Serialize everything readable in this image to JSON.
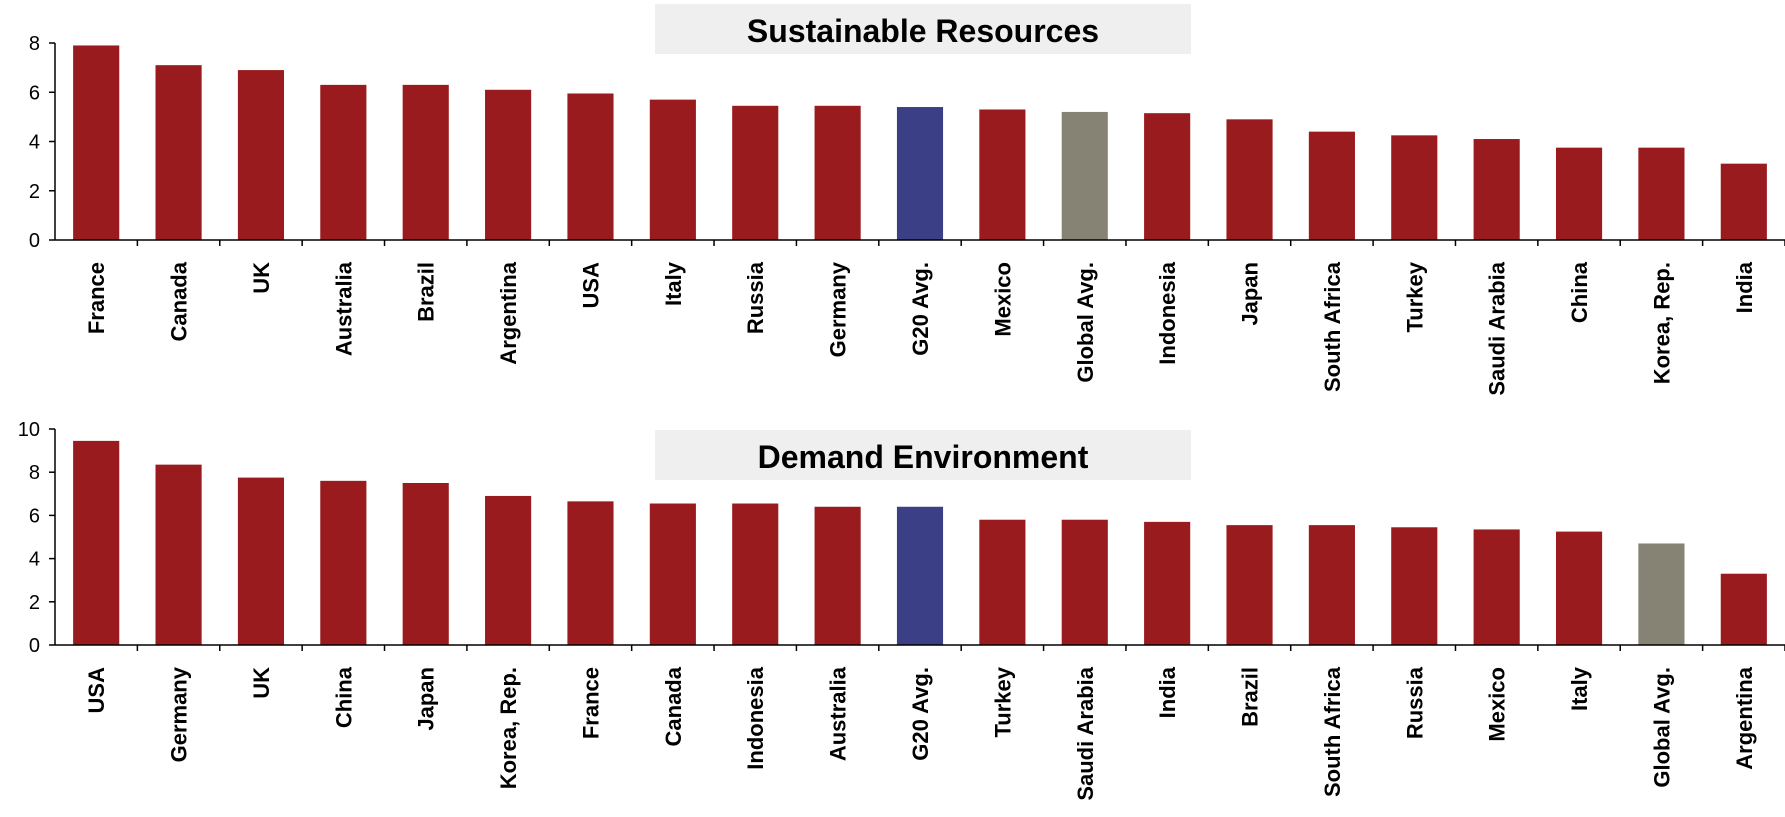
{
  "colors": {
    "default": "#9a1b1e",
    "g20": "#3a3f86",
    "global": "#878374",
    "title_box": "#efefef"
  },
  "chart_data": [
    {
      "type": "bar",
      "title": "Sustainable Resources",
      "ylim": [
        0,
        8
      ],
      "yticks": [
        "0",
        "2",
        "4",
        "6",
        "8"
      ],
      "grid": false,
      "categories": [
        "France",
        "Canada",
        "UK",
        "Australia",
        "Brazil",
        "Argentina",
        "USA",
        "Italy",
        "Russia",
        "Germany",
        "G20 Avg.",
        "Mexico",
        "Global Avg.",
        "Indonesia",
        "Japan",
        "South Africa",
        "Turkey",
        "Saudi Arabia",
        "China",
        "Korea, Rep.",
        "India"
      ],
      "values": [
        7.9,
        7.1,
        6.9,
        6.3,
        6.3,
        6.1,
        5.95,
        5.7,
        5.45,
        5.45,
        5.4,
        5.3,
        5.2,
        5.15,
        4.9,
        4.4,
        4.25,
        4.1,
        3.75,
        3.75,
        3.1
      ]
    },
    {
      "type": "bar",
      "title": "Demand Environment",
      "ylim": [
        0,
        10
      ],
      "yticks": [
        "0",
        "2",
        "4",
        "6",
        "8",
        "10"
      ],
      "grid": false,
      "categories": [
        "USA",
        "Germany",
        "UK",
        "China",
        "Japan",
        "Korea, Rep.",
        "France",
        "Canada",
        "Indonesia",
        "Australia",
        "G20 Avg.",
        "Turkey",
        "Saudi Arabia",
        "India",
        "Brazil",
        "South Africa",
        "Russia",
        "Mexico",
        "Italy",
        "Global Avg.",
        "Argentina"
      ],
      "values": [
        9.45,
        8.35,
        7.75,
        7.6,
        7.5,
        6.9,
        6.65,
        6.55,
        6.55,
        6.4,
        6.4,
        5.8,
        5.8,
        5.7,
        5.55,
        5.55,
        5.45,
        5.35,
        5.25,
        4.7,
        3.3
      ]
    }
  ]
}
